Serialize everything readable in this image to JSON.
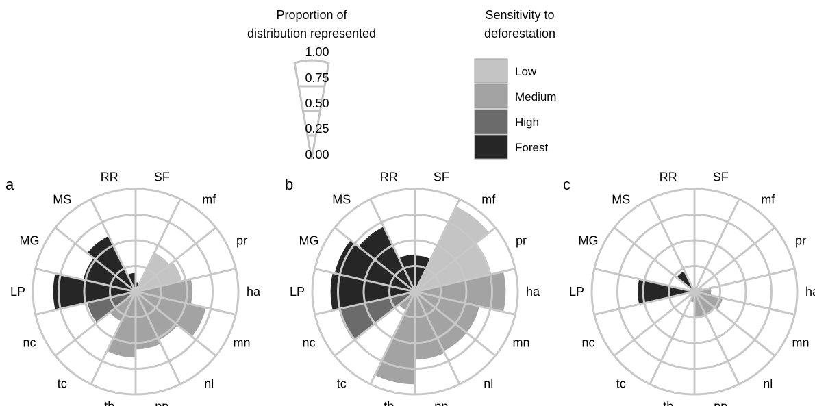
{
  "legend": {
    "proportion": {
      "title_lines": [
        "Proportion of",
        "distribution represented"
      ],
      "ticks": [
        "1.00",
        "0.75",
        "0.50",
        "0.25",
        "0.00"
      ]
    },
    "sensitivity": {
      "title_lines": [
        "Sensitivity to",
        "deforestation"
      ],
      "items": [
        {
          "label": "Low",
          "color": "#c4c4c4"
        },
        {
          "label": "Medium",
          "color": "#a3a3a3"
        },
        {
          "label": "High",
          "color": "#6b6b6b"
        },
        {
          "label": "Forest",
          "color": "#262626"
        }
      ]
    }
  },
  "chart_data": [
    {
      "type": "radial_bar",
      "panel_label": "a",
      "categories": [
        "SF",
        "mf",
        "pr",
        "ha",
        "mn",
        "nl",
        "pp",
        "tb",
        "tc",
        "nc",
        "LP",
        "MG",
        "MS",
        "RR"
      ],
      "values": [
        0.09,
        0.42,
        0.46,
        0.55,
        0.7,
        0.52,
        0.56,
        0.64,
        0.32,
        0.48,
        0.8,
        0.52,
        0.6,
        0.18
      ],
      "sensitivity": [
        "Forest",
        "Low",
        "Low",
        "Medium",
        "Medium",
        "Medium",
        "Medium",
        "Medium",
        "Medium",
        "High",
        "Forest",
        "Forest",
        "Forest",
        "Forest"
      ],
      "rlim": [
        0,
        1
      ],
      "grid": true
    },
    {
      "type": "radial_bar",
      "panel_label": "b",
      "categories": [
        "SF",
        "mf",
        "pr",
        "ha",
        "mn",
        "nl",
        "pp",
        "tb",
        "tc",
        "nc",
        "LP",
        "MG",
        "MS",
        "RR"
      ],
      "values": [
        0.35,
        0.92,
        0.76,
        0.88,
        0.64,
        0.64,
        0.66,
        0.9,
        0.2,
        0.76,
        0.82,
        0.8,
        0.7,
        0.36
      ],
      "sensitivity": [
        "Forest",
        "Low",
        "Low",
        "Medium",
        "Medium",
        "Medium",
        "Medium",
        "Medium",
        "Medium",
        "High",
        "Forest",
        "Forest",
        "Forest",
        "Forest"
      ],
      "rlim": [
        0,
        1
      ],
      "grid": true
    },
    {
      "type": "radial_bar",
      "panel_label": "c",
      "categories": [
        "SF",
        "mf",
        "pr",
        "ha",
        "mn",
        "nl",
        "pp",
        "tb",
        "tc",
        "nc",
        "LP",
        "MG",
        "MS",
        "RR"
      ],
      "values": [
        0.0,
        0.02,
        0.08,
        0.16,
        0.28,
        0.24,
        0.26,
        0.1,
        0.06,
        0.0,
        0.55,
        0.0,
        0.22,
        0.0
      ],
      "sensitivity": [
        "Forest",
        "Low",
        "Low",
        "Medium",
        "Medium",
        "Medium",
        "Medium",
        "Medium",
        "Medium",
        "High",
        "Forest",
        "Forest",
        "Forest",
        "Forest"
      ],
      "rlim": [
        0,
        1
      ],
      "grid": true
    }
  ]
}
